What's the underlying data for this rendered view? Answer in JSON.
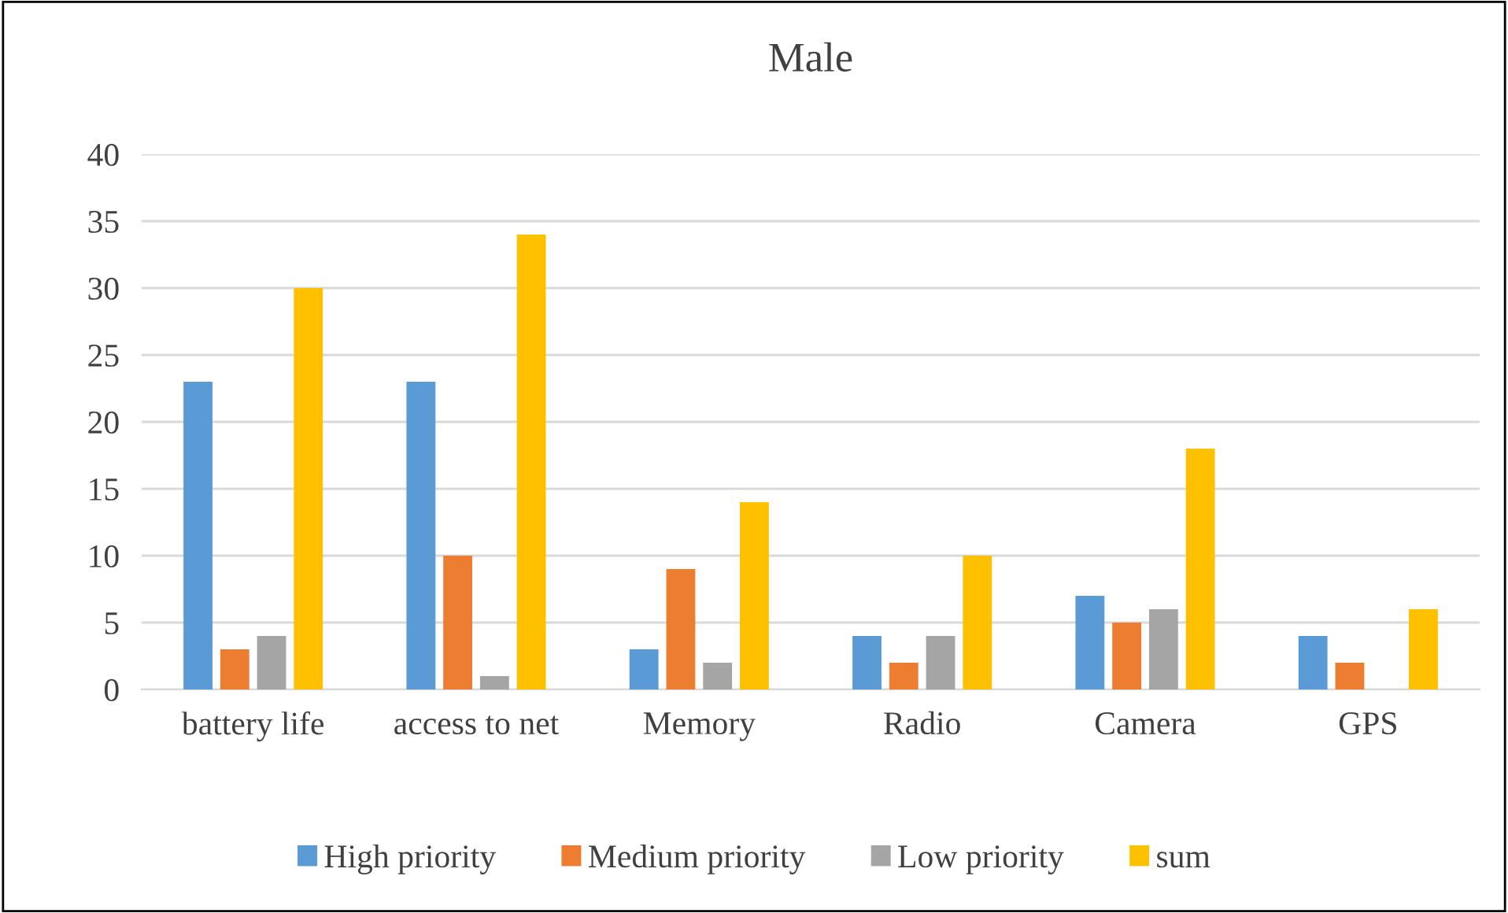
{
  "chart_data": {
    "type": "bar",
    "title": "Male",
    "categories": [
      "battery life",
      "access to net",
      "Memory",
      "Radio",
      "Camera",
      "GPS"
    ],
    "series": [
      {
        "name": "High priority",
        "color": "#5b9bd5",
        "values": [
          23,
          23,
          3,
          4,
          7,
          4
        ]
      },
      {
        "name": "Medium priority",
        "color": "#ed7d31",
        "values": [
          3,
          10,
          9,
          2,
          5,
          2
        ]
      },
      {
        "name": "Low priority",
        "color": "#a5a5a5",
        "values": [
          4,
          1,
          2,
          4,
          6,
          0
        ]
      },
      {
        "name": "sum",
        "color": "#ffc000",
        "values": [
          30,
          34,
          14,
          10,
          18,
          6
        ]
      }
    ],
    "ylim": [
      0,
      40
    ],
    "yticks": [
      0,
      5,
      10,
      15,
      20,
      25,
      30,
      35,
      40
    ],
    "grid": "y",
    "legend": "bottom"
  }
}
